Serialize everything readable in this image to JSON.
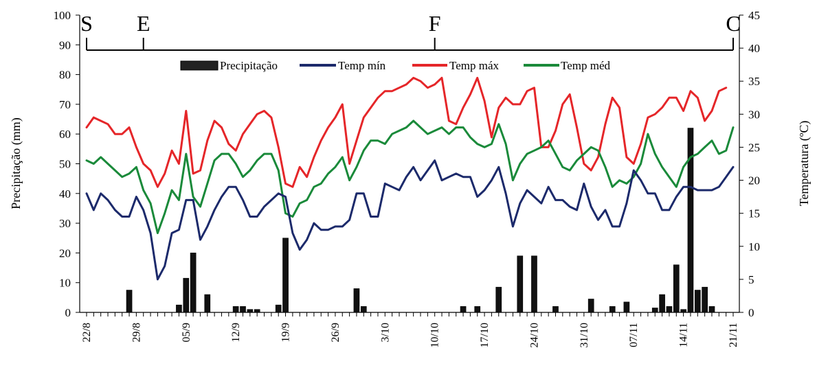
{
  "chart_data": {
    "type": "bar+line",
    "ylabel_left": "Precipitação (mm)",
    "ylabel_right": "Temperatura (ºC)",
    "ylim_left": [
      0,
      100
    ],
    "yticks_left": [
      "0",
      "10",
      "20",
      "30",
      "40",
      "50",
      "60",
      "70",
      "80",
      "90",
      "100"
    ],
    "ylim_right": [
      0,
      45
    ],
    "yticks_right": [
      "0",
      "5",
      "10",
      "15",
      "20",
      "25",
      "30",
      "35",
      "40",
      "45"
    ],
    "xlim": [
      0,
      91
    ],
    "x_tick_labels": [
      "22/8",
      "29/8",
      "05/9",
      "12/9",
      "19/9",
      "26/9",
      "3/10",
      "10/10",
      "17/10",
      "24/10",
      "31/10",
      "07/11",
      "14/11",
      "21/11"
    ],
    "x_tick_days": [
      0,
      7,
      14,
      21,
      28,
      35,
      42,
      49,
      56,
      63,
      70,
      77,
      84,
      91
    ],
    "stages": [
      {
        "label": "S",
        "day": 0
      },
      {
        "label": "E",
        "day": 8
      },
      {
        "label": "F",
        "day": 49
      },
      {
        "label": "C",
        "day": 91
      }
    ],
    "legend": {
      "precip": "Precipitação",
      "tmin": "Temp mín",
      "tmax": "Temp máx",
      "tmed": "Temp méd"
    },
    "colors": {
      "precip": "#111111",
      "tmin": "#1c2a6b",
      "tmax": "#e52629",
      "tmed": "#1a8a3a"
    },
    "precipitation": {
      "days": [
        6,
        13,
        14,
        15,
        17,
        21,
        22,
        23,
        24,
        27,
        28,
        38,
        39,
        53,
        55,
        58,
        61,
        63,
        66,
        71,
        74,
        76,
        80,
        81,
        82,
        83,
        84,
        85,
        86,
        87,
        88
      ],
      "values": [
        7.5,
        2.5,
        11.5,
        20,
        6,
        2,
        2,
        1,
        1,
        2.5,
        25,
        8,
        2,
        2,
        2,
        8.5,
        19,
        19,
        2,
        4.5,
        2,
        3.5,
        1.5,
        6,
        2,
        16,
        1,
        62,
        7.5,
        8.5,
        2
      ]
    },
    "temperature": {
      "days": [
        0,
        1,
        2,
        3,
        4,
        5,
        6,
        7,
        8,
        9,
        10,
        11,
        12,
        13,
        14,
        15,
        16,
        17,
        18,
        19,
        20,
        21,
        22,
        23,
        24,
        25,
        26,
        27,
        28,
        29,
        30,
        31,
        32,
        33,
        34,
        35,
        36,
        37,
        38,
        39,
        40,
        41,
        42,
        43,
        44,
        45,
        46,
        47,
        48,
        49,
        50,
        51,
        52,
        53,
        54,
        55,
        56,
        57,
        58,
        59,
        60,
        61,
        62,
        63,
        64,
        65,
        66,
        67,
        68,
        69,
        70,
        71,
        72,
        73,
        74,
        75,
        76,
        77,
        78,
        79,
        80,
        81,
        82,
        83,
        84,
        85,
        86,
        87,
        88,
        89,
        90,
        91
      ],
      "tmin": [
        18,
        15.5,
        18,
        17,
        15.5,
        14.5,
        14.5,
        17.5,
        15.5,
        12,
        5,
        7,
        12,
        12.5,
        17,
        17,
        11,
        13,
        15.5,
        17.5,
        19,
        19,
        17,
        14.5,
        14.5,
        16,
        17,
        18,
        17.5,
        12,
        9.5,
        11,
        13.5,
        12.5,
        12.5,
        13,
        13,
        14,
        18,
        18,
        14.5,
        14.5,
        19.5,
        19,
        18.5,
        20.5,
        22,
        20,
        21.5,
        23,
        20,
        20.5,
        21,
        20.5,
        20.5,
        17.5,
        18.5,
        20,
        22,
        18,
        13,
        16.5,
        18.5,
        17.5,
        16.5,
        19,
        17,
        17,
        16,
        15.5,
        19.5,
        16,
        14,
        15.5,
        13,
        13,
        16.5,
        21.5,
        20,
        18,
        18,
        15.5,
        15.5,
        17.5,
        19,
        19,
        18.5,
        18.5,
        18.5,
        19,
        20.5,
        22
      ],
      "tmax": [
        28,
        29.5,
        29,
        28.5,
        27,
        27,
        28,
        25,
        22.5,
        21.5,
        19,
        21,
        24.5,
        22.5,
        30.5,
        21,
        21.5,
        26,
        29,
        28,
        25.5,
        24.5,
        27,
        28.5,
        30,
        30.5,
        29.5,
        25,
        19.5,
        19,
        22,
        20.5,
        23.5,
        26,
        28,
        29.5,
        31.5,
        22.5,
        26,
        29.5,
        31,
        32.5,
        33.5,
        33.5,
        34,
        34.5,
        35.5,
        35,
        34,
        34.5,
        35.5,
        29,
        28.5,
        31,
        33,
        35.5,
        32,
        26.5,
        31,
        32.5,
        31.5,
        31.5,
        33.5,
        34,
        25,
        25,
        27.5,
        31.5,
        33,
        28,
        22.5,
        21.5,
        23.5,
        28.5,
        32.5,
        31,
        23.5,
        22.5,
        25.5,
        29.5,
        30,
        31,
        32.5,
        32.5,
        30.5,
        33.5,
        32.5,
        29,
        30.5,
        33.5,
        34
      ],
      "tmed": [
        23,
        22.5,
        23.5,
        22.5,
        21.5,
        20.5,
        21,
        22,
        18.5,
        16.5,
        12,
        15,
        18.5,
        17,
        24,
        17.5,
        16,
        19.5,
        23,
        24,
        24,
        22.5,
        20.5,
        21.5,
        23,
        24,
        24,
        21.5,
        15,
        14.5,
        16.5,
        17,
        19,
        19.5,
        21,
        22,
        23.5,
        20,
        22,
        24.5,
        26,
        26,
        25.5,
        27,
        27.5,
        28,
        29,
        28,
        27,
        27.5,
        28,
        27,
        28,
        28,
        26.5,
        25.5,
        25,
        25.5,
        28.5,
        25.5,
        20,
        22.5,
        24,
        24.5,
        25,
        26,
        24,
        22,
        21.5,
        23,
        24,
        25,
        24.5,
        22,
        19,
        20,
        19.5,
        20.5,
        22.5,
        27,
        24,
        22,
        20.5,
        19,
        22,
        23.5,
        24,
        25,
        26,
        24,
        24.5,
        28
      ]
    }
  }
}
